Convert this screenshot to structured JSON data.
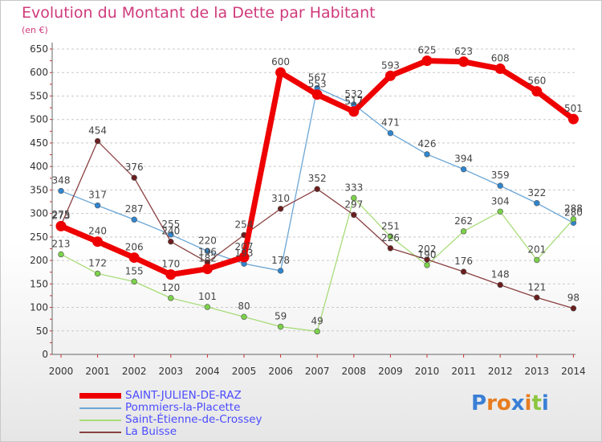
{
  "header": {
    "title": "Evolution du Montant de la Dette par Habitant",
    "subtitle": "(en €)"
  },
  "logo": {
    "letters": [
      "P",
      "r",
      "o",
      "x",
      "i",
      "t",
      "i"
    ],
    "colors": [
      "#3a7fd5",
      "#e77c1e",
      "#e77c1e",
      "#3a7fd5",
      "#e77c1e",
      "#8cc63f",
      "#3a7fd5"
    ]
  },
  "chart_data": {
    "type": "line",
    "title": "Evolution du Montant de la Dette par Habitant",
    "subtitle": "(en €)",
    "xlabel": "",
    "ylabel": "",
    "x": [
      "2000",
      "2001",
      "2002",
      "2003",
      "2004",
      "2005",
      "2006",
      "2007",
      "2008",
      "2009",
      "2010",
      "2011",
      "2012",
      "2013",
      "2014"
    ],
    "ylim": [
      0,
      650
    ],
    "yticks": [
      0,
      50,
      100,
      150,
      200,
      250,
      300,
      350,
      400,
      450,
      500,
      550,
      600,
      650
    ],
    "grid": "horizontal dashed",
    "legend_position": "bottom-left",
    "series": [
      {
        "name": "SAINT-JULIEN-DE-RAZ",
        "color": "#ee0000",
        "emphasis": true,
        "values": [
          273,
          240,
          206,
          170,
          182,
          207,
          600,
          553,
          517,
          593,
          625,
          623,
          608,
          560,
          501
        ],
        "labels": [
          "273",
          "240",
          "206",
          "170",
          "182",
          "207",
          "600",
          "553",
          "517",
          "593",
          "625",
          "623",
          "608",
          "560",
          "501"
        ]
      },
      {
        "name": "Pommiers-la-Placette",
        "color": "#6aa6d6",
        "marker": "#2f86cf",
        "values": [
          348,
          317,
          287,
          255,
          220,
          193,
          178,
          567,
          532,
          471,
          426,
          394,
          359,
          322,
          280
        ],
        "labels": [
          "348",
          "317",
          "287",
          "255",
          "220",
          "193",
          "178",
          "567",
          "532",
          "471",
          "426",
          "394",
          "359",
          "322",
          "280"
        ]
      },
      {
        "name": "Saint-Étienne-de-Crossey",
        "color": "#a8dc78",
        "marker": "#7bd14a",
        "values": [
          213,
          172,
          155,
          120,
          101,
          80,
          59,
          49,
          333,
          251,
          190,
          262,
          304,
          201,
          288
        ],
        "labels": [
          "213",
          "172",
          "155",
          "120",
          "101",
          "80",
          "59",
          "49",
          "333",
          "251",
          "190",
          "262",
          "304",
          "201",
          "288"
        ]
      },
      {
        "name": "La Buisse",
        "color": "#8a4040",
        "marker": "#6a1e1e",
        "values": [
          275,
          454,
          376,
          240,
          196,
          254,
          310,
          352,
          297,
          226,
          202,
          176,
          148,
          121,
          98
        ],
        "labels": [
          "275",
          "454",
          "376",
          "240",
          "196",
          "254",
          "310",
          "352",
          "297",
          "226",
          "202",
          "176",
          "148",
          "121",
          "98"
        ]
      }
    ]
  }
}
